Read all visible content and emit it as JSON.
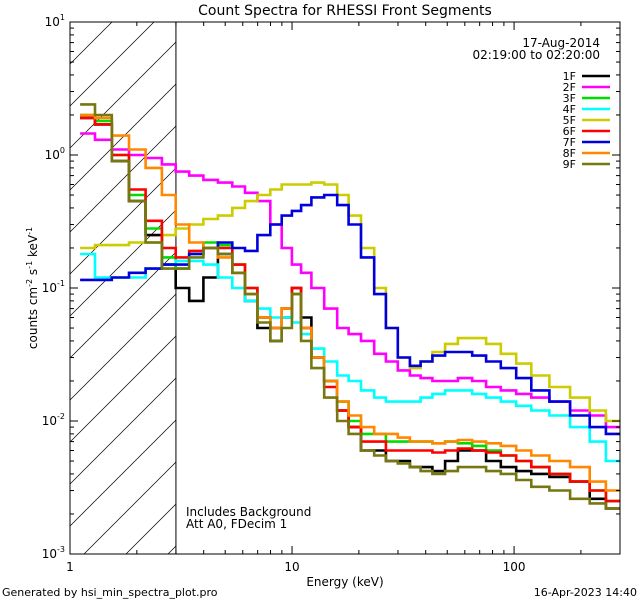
{
  "chart_data": {
    "type": "line",
    "title": "Count Spectra for RHESSI Front Segments",
    "date": "17-Aug-2014",
    "time_range": "02:19:00 to 02:20:00",
    "xlabel": "Energy (keV)",
    "ylabel_parts": {
      "a": "counts cm",
      "b": "-2",
      "c": " s",
      "d": "-1",
      "e": " keV",
      "f": "-1"
    },
    "x_scale": "log",
    "y_scale": "log",
    "xlim": [
      1,
      300
    ],
    "ylim": [
      0.001,
      10
    ],
    "x_ticks": [
      {
        "v": 1,
        "label": "1"
      },
      {
        "v": 10,
        "label": "10"
      },
      {
        "v": 100,
        "label": "100"
      }
    ],
    "y_ticks": [
      {
        "v": 0.001,
        "base": "10",
        "exp": "-3"
      },
      {
        "v": 0.01,
        "base": "10",
        "exp": "-2"
      },
      {
        "v": 0.1,
        "base": "10",
        "exp": "-1"
      },
      {
        "v": 1,
        "base": "10",
        "exp": "0"
      },
      {
        "v": 10,
        "base": "10",
        "exp": "1"
      }
    ],
    "hatched_region": [
      1,
      3
    ],
    "annotations": [
      "Includes Background",
      "Att A0, FDecim 1"
    ],
    "footer_left": "Generated by hsi_min_spectra_plot.pro",
    "footer_right": "16-Apr-2023 14:40",
    "x": [
      1.2,
      1.4,
      1.7,
      2.0,
      2.4,
      2.8,
      3.2,
      3.7,
      4.3,
      5.0,
      5.8,
      6.5,
      7.5,
      8.5,
      9.5,
      10.5,
      11.5,
      13,
      15,
      17,
      19,
      22,
      25,
      28,
      32,
      36,
      40,
      46,
      52,
      60,
      70,
      80,
      95,
      110,
      130,
      160,
      200,
      240,
      280
    ],
    "series": [
      {
        "name": "1F",
        "color": "#000000",
        "values": [
          1.9,
          1.7,
          0.9,
          0.45,
          0.25,
          0.15,
          0.1,
          0.08,
          0.12,
          0.18,
          0.13,
          0.08,
          0.05,
          0.04,
          0.06,
          0.1,
          0.06,
          0.03,
          0.02,
          0.012,
          0.009,
          0.006,
          0.006,
          0.005,
          0.005,
          0.0045,
          0.0045,
          0.0042,
          0.005,
          0.006,
          0.006,
          0.005,
          0.0045,
          0.0042,
          0.004,
          0.0038,
          0.0035,
          0.0026,
          0.0022
        ]
      },
      {
        "name": "2F",
        "color": "#ff00ff",
        "values": [
          1.45,
          1.3,
          1.1,
          1.0,
          0.95,
          0.85,
          0.75,
          0.7,
          0.65,
          0.62,
          0.58,
          0.52,
          0.45,
          0.3,
          0.2,
          0.15,
          0.13,
          0.1,
          0.07,
          0.05,
          0.045,
          0.04,
          0.032,
          0.028,
          0.024,
          0.022,
          0.021,
          0.02,
          0.02,
          0.021,
          0.02,
          0.018,
          0.017,
          0.016,
          0.015,
          0.014,
          0.012,
          0.011,
          0.009
        ]
      },
      {
        "name": "3F",
        "color": "#00dd00",
        "values": [
          2.0,
          1.8,
          1.0,
          0.5,
          0.28,
          0.17,
          0.14,
          0.18,
          0.22,
          0.21,
          0.15,
          0.1,
          0.06,
          0.05,
          0.07,
          0.09,
          0.05,
          0.03,
          0.02,
          0.014,
          0.01,
          0.008,
          0.008,
          0.007,
          0.007,
          0.007,
          0.007,
          0.0068,
          0.007,
          0.0068,
          0.0065,
          0.006,
          0.0055,
          0.005,
          0.0045,
          0.004,
          0.0035,
          0.003,
          0.0025
        ]
      },
      {
        "name": "4F",
        "color": "#00ffff",
        "values": [
          0.18,
          0.12,
          0.12,
          0.12,
          0.14,
          0.15,
          0.16,
          0.16,
          0.15,
          0.12,
          0.1,
          0.08,
          0.07,
          0.06,
          0.06,
          0.055,
          0.045,
          0.035,
          0.028,
          0.022,
          0.02,
          0.017,
          0.015,
          0.014,
          0.014,
          0.014,
          0.015,
          0.016,
          0.017,
          0.017,
          0.016,
          0.015,
          0.014,
          0.013,
          0.012,
          0.011,
          0.009,
          0.007,
          0.005
        ]
      },
      {
        "name": "5F",
        "color": "#cccc00",
        "values": [
          0.2,
          0.21,
          0.21,
          0.22,
          0.22,
          0.25,
          0.28,
          0.3,
          0.33,
          0.35,
          0.4,
          0.45,
          0.5,
          0.55,
          0.6,
          0.6,
          0.6,
          0.62,
          0.6,
          0.5,
          0.35,
          0.2,
          0.1,
          0.05,
          0.03,
          0.025,
          0.028,
          0.033,
          0.038,
          0.042,
          0.042,
          0.038,
          0.032,
          0.027,
          0.022,
          0.018,
          0.015,
          0.012,
          0.01
        ]
      },
      {
        "name": "6F",
        "color": "#ff0000",
        "values": [
          1.9,
          1.7,
          1.0,
          0.55,
          0.32,
          0.2,
          0.17,
          0.19,
          0.2,
          0.2,
          0.15,
          0.1,
          0.06,
          0.05,
          0.07,
          0.1,
          0.05,
          0.03,
          0.018,
          0.012,
          0.009,
          0.007,
          0.007,
          0.006,
          0.006,
          0.006,
          0.006,
          0.0058,
          0.006,
          0.0062,
          0.006,
          0.0058,
          0.0055,
          0.005,
          0.0045,
          0.004,
          0.0035,
          0.003,
          0.0025
        ]
      },
      {
        "name": "7F",
        "color": "#0000dd",
        "values": [
          0.115,
          0.115,
          0.12,
          0.13,
          0.14,
          0.15,
          0.15,
          0.18,
          0.2,
          0.22,
          0.2,
          0.19,
          0.25,
          0.3,
          0.35,
          0.38,
          0.42,
          0.48,
          0.5,
          0.42,
          0.3,
          0.17,
          0.09,
          0.05,
          0.03,
          0.026,
          0.028,
          0.031,
          0.033,
          0.033,
          0.031,
          0.028,
          0.025,
          0.021,
          0.017,
          0.014,
          0.011,
          0.009,
          0.008
        ]
      },
      {
        "name": "8F",
        "color": "#ff8800",
        "values": [
          2.0,
          1.9,
          1.4,
          1.1,
          0.8,
          0.5,
          0.3,
          0.22,
          0.2,
          0.17,
          0.13,
          0.09,
          0.06,
          0.05,
          0.07,
          0.09,
          0.05,
          0.03,
          0.02,
          0.014,
          0.011,
          0.009,
          0.008,
          0.008,
          0.0075,
          0.007,
          0.007,
          0.0068,
          0.007,
          0.0072,
          0.007,
          0.0068,
          0.0065,
          0.006,
          0.0055,
          0.005,
          0.0045,
          0.0035,
          0.003
        ]
      },
      {
        "name": "9F",
        "color": "#777711",
        "values": [
          2.4,
          2.0,
          0.9,
          0.45,
          0.22,
          0.14,
          0.14,
          0.17,
          0.2,
          0.18,
          0.13,
          0.09,
          0.055,
          0.04,
          0.05,
          0.09,
          0.04,
          0.025,
          0.015,
          0.01,
          0.008,
          0.006,
          0.0055,
          0.005,
          0.0048,
          0.0045,
          0.0042,
          0.004,
          0.0042,
          0.0045,
          0.0045,
          0.0042,
          0.004,
          0.0036,
          0.0032,
          0.003,
          0.0026,
          0.0024,
          0.0022
        ]
      }
    ]
  }
}
